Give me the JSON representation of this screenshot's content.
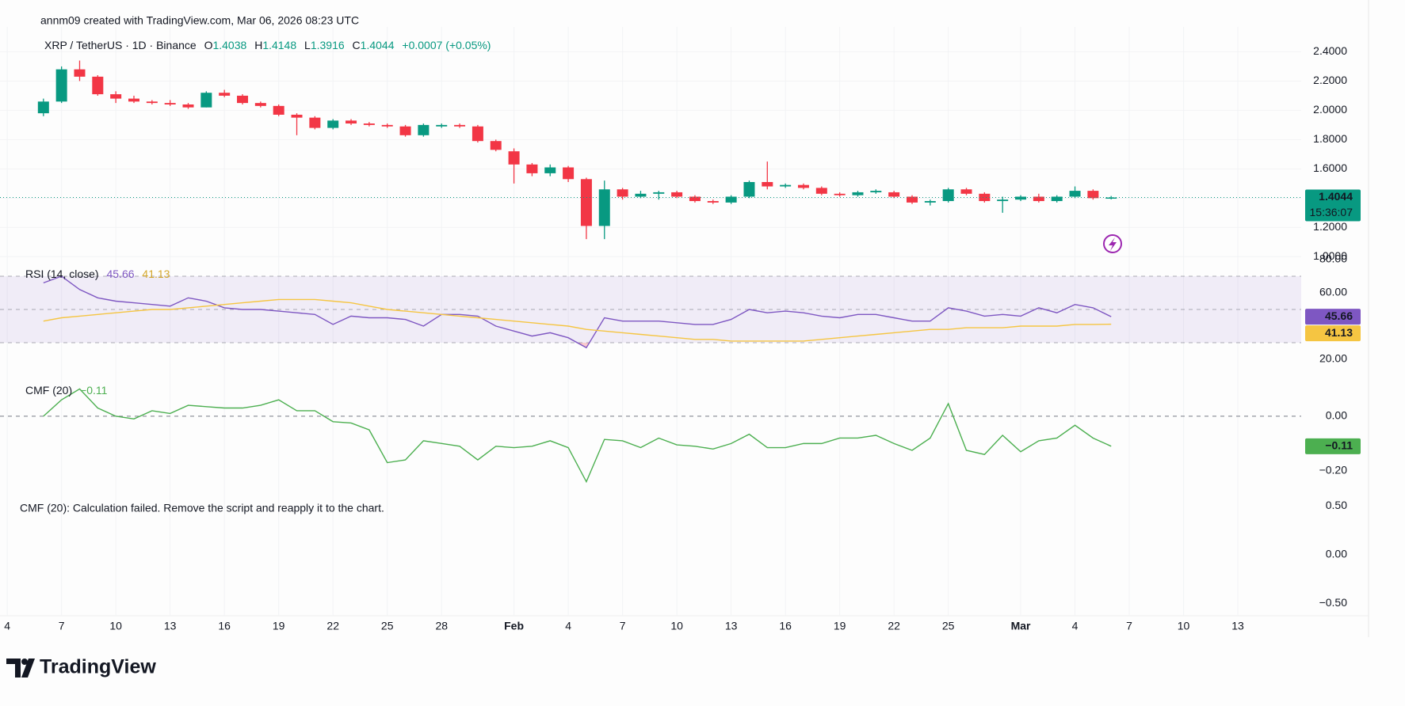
{
  "header": {
    "attribution": "annm09 created with TradingView.com, Mar 06, 2026 08:23 UTC",
    "logo": "TradingView"
  },
  "chart_data": [
    {
      "type": "candlestick",
      "symbol": "XRP / TetherUS · 1D · Binance",
      "legend_labels": [
        "O",
        "H",
        "L",
        "C"
      ],
      "change": "+0.0007 (+0.05%)",
      "countdown": "15:36:07",
      "colors": {
        "up": "#089981",
        "down": "#f23645"
      },
      "grid": true,
      "ohlc": [
        [
          1.98,
          2.08,
          1.96,
          2.06
        ],
        [
          2.06,
          2.3,
          2.05,
          2.28
        ],
        [
          2.28,
          2.34,
          2.2,
          2.23
        ],
        [
          2.23,
          2.24,
          2.1,
          2.11
        ],
        [
          2.11,
          2.13,
          2.05,
          2.08
        ],
        [
          2.08,
          2.1,
          2.05,
          2.06
        ],
        [
          2.06,
          2.07,
          2.04,
          2.05
        ],
        [
          2.05,
          2.07,
          2.03,
          2.04
        ],
        [
          2.04,
          2.05,
          2.01,
          2.02
        ],
        [
          2.02,
          2.13,
          2.02,
          2.12
        ],
        [
          2.12,
          2.14,
          2.09,
          2.1
        ],
        [
          2.1,
          2.11,
          2.04,
          2.05
        ],
        [
          2.05,
          2.06,
          2.02,
          2.03
        ],
        [
          2.03,
          2.04,
          1.96,
          1.97
        ],
        [
          1.97,
          1.98,
          1.83,
          1.95
        ],
        [
          1.95,
          1.96,
          1.87,
          1.88
        ],
        [
          1.88,
          1.94,
          1.87,
          1.93
        ],
        [
          1.93,
          1.94,
          1.9,
          1.91
        ],
        [
          1.91,
          1.92,
          1.89,
          1.9
        ],
        [
          1.9,
          1.91,
          1.88,
          1.89
        ],
        [
          1.89,
          1.9,
          1.82,
          1.83
        ],
        [
          1.83,
          1.91,
          1.82,
          1.9
        ],
        [
          1.89,
          1.91,
          1.88,
          1.9
        ],
        [
          1.9,
          1.91,
          1.88,
          1.89
        ],
        [
          1.89,
          1.9,
          1.78,
          1.79
        ],
        [
          1.79,
          1.8,
          1.72,
          1.73
        ],
        [
          1.72,
          1.74,
          1.5,
          1.63
        ],
        [
          1.63,
          1.64,
          1.55,
          1.57
        ],
        [
          1.57,
          1.63,
          1.55,
          1.61
        ],
        [
          1.61,
          1.62,
          1.51,
          1.53
        ],
        [
          1.53,
          1.54,
          1.12,
          1.21
        ],
        [
          1.21,
          1.52,
          1.12,
          1.46
        ],
        [
          1.46,
          1.47,
          1.39,
          1.41
        ],
        [
          1.41,
          1.45,
          1.4,
          1.43
        ],
        [
          1.43,
          1.45,
          1.39,
          1.44
        ],
        [
          1.44,
          1.45,
          1.4,
          1.41
        ],
        [
          1.41,
          1.42,
          1.37,
          1.38
        ],
        [
          1.38,
          1.39,
          1.36,
          1.37
        ],
        [
          1.37,
          1.42,
          1.36,
          1.41
        ],
        [
          1.41,
          1.52,
          1.4,
          1.51
        ],
        [
          1.51,
          1.65,
          1.46,
          1.48
        ],
        [
          1.48,
          1.5,
          1.47,
          1.49
        ],
        [
          1.49,
          1.5,
          1.46,
          1.47
        ],
        [
          1.47,
          1.48,
          1.42,
          1.43
        ],
        [
          1.43,
          1.44,
          1.41,
          1.42
        ],
        [
          1.42,
          1.45,
          1.41,
          1.44
        ],
        [
          1.44,
          1.46,
          1.43,
          1.45
        ],
        [
          1.44,
          1.45,
          1.4,
          1.41
        ],
        [
          1.41,
          1.42,
          1.36,
          1.37
        ],
        [
          1.37,
          1.39,
          1.35,
          1.38
        ],
        [
          1.38,
          1.47,
          1.37,
          1.46
        ],
        [
          1.46,
          1.47,
          1.42,
          1.43
        ],
        [
          1.43,
          1.44,
          1.37,
          1.38
        ],
        [
          1.38,
          1.41,
          1.3,
          1.39
        ],
        [
          1.39,
          1.42,
          1.38,
          1.41
        ],
        [
          1.41,
          1.43,
          1.37,
          1.38
        ],
        [
          1.38,
          1.42,
          1.37,
          1.41
        ],
        [
          1.41,
          1.48,
          1.4,
          1.45
        ],
        [
          1.45,
          1.46,
          1.39,
          1.4
        ],
        [
          1.4038,
          1.4148,
          1.3916,
          1.4044
        ]
      ],
      "ylim": [
        0.98,
        2.57
      ],
      "yticks": [
        {
          "value": 1.0,
          "label": "1.0000"
        },
        {
          "value": 1.2,
          "label": "1.2000"
        },
        {
          "value": 1.4,
          "label": "1.4000"
        },
        {
          "value": 1.6,
          "label": "1.6000"
        },
        {
          "value": 1.8,
          "label": "1.8000"
        },
        {
          "value": 2.0,
          "label": "2.0000"
        },
        {
          "value": 2.2,
          "label": "2.2000"
        },
        {
          "value": 2.4,
          "label": "2.4000"
        }
      ],
      "xlim": [
        -2.4,
        69.5
      ],
      "xticks": [
        {
          "value": -2,
          "label": "4"
        },
        {
          "value": 1,
          "label": "7"
        },
        {
          "value": 4,
          "label": "10"
        },
        {
          "value": 7,
          "label": "13"
        },
        {
          "value": 10,
          "label": "16"
        },
        {
          "value": 13,
          "label": "19"
        },
        {
          "value": 16,
          "label": "22"
        },
        {
          "value": 19,
          "label": "25"
        },
        {
          "value": 22,
          "label": "28"
        },
        {
          "value": 26,
          "label": "Feb"
        },
        {
          "value": 29,
          "label": "4"
        },
        {
          "value": 32,
          "label": "7"
        },
        {
          "value": 35,
          "label": "10"
        },
        {
          "value": 38,
          "label": "13"
        },
        {
          "value": 41,
          "label": "16"
        },
        {
          "value": 44,
          "label": "19"
        },
        {
          "value": 47,
          "label": "22"
        },
        {
          "value": 50,
          "label": "25"
        },
        {
          "value": 54,
          "label": "Mar"
        },
        {
          "value": 57,
          "label": "4"
        },
        {
          "value": 60,
          "label": "7"
        },
        {
          "value": 63,
          "label": "10"
        },
        {
          "value": 66,
          "label": "13"
        }
      ]
    },
    {
      "type": "line",
      "title": "RSI (14, close)",
      "bands": [
        70,
        50,
        30
      ],
      "series": [
        {
          "color": "#7e57c2",
          "values": [
            66,
            70,
            62,
            57,
            55,
            54,
            53,
            52,
            57,
            55,
            51,
            50,
            50,
            49,
            48,
            47,
            41,
            46,
            45,
            45,
            44,
            40,
            47,
            47,
            46,
            40,
            37,
            34,
            36,
            33,
            27,
            45,
            43,
            43,
            43,
            42,
            41,
            41,
            44,
            50,
            48,
            49,
            48,
            46,
            45,
            47,
            47,
            45,
            43,
            43,
            51,
            49,
            46,
            47,
            46,
            51,
            48,
            53,
            51,
            45.66
          ]
        },
        {
          "color": "#f5c542",
          "values": [
            43,
            45,
            46,
            47,
            48,
            49,
            50,
            50,
            51,
            52,
            53,
            54,
            55,
            56,
            56,
            56,
            55,
            54,
            52,
            50,
            49,
            48,
            47,
            46,
            45,
            44,
            43,
            42,
            41,
            40,
            38,
            37,
            36,
            35,
            34,
            33,
            32,
            32,
            31,
            31,
            31,
            31,
            31,
            32,
            33,
            34,
            35,
            36,
            37,
            38,
            38,
            39,
            39,
            39,
            40,
            40,
            40,
            41,
            41,
            41.13
          ]
        }
      ],
      "ylim": [
        10,
        80
      ],
      "yticks": [
        {
          "value": 80,
          "label": "80.00"
        },
        {
          "value": 60,
          "label": "60.00"
        },
        {
          "value": 20,
          "label": "20.00"
        }
      ]
    },
    {
      "type": "line",
      "title": "CMF (20)",
      "baseline": 0,
      "series": [
        {
          "color": "#4caf50",
          "values": [
            0.0,
            0.06,
            0.1,
            0.03,
            0.0,
            -0.01,
            0.02,
            0.01,
            0.04,
            0.035,
            0.03,
            0.03,
            0.04,
            0.06,
            0.02,
            0.02,
            -0.02,
            -0.025,
            -0.05,
            -0.17,
            -0.16,
            -0.09,
            -0.1,
            -0.11,
            -0.16,
            -0.11,
            -0.115,
            -0.11,
            -0.09,
            -0.115,
            -0.24,
            -0.085,
            -0.09,
            -0.115,
            -0.08,
            -0.105,
            -0.11,
            -0.12,
            -0.1,
            -0.066,
            -0.115,
            -0.115,
            -0.1,
            -0.1,
            -0.08,
            -0.08,
            -0.07,
            -0.1,
            -0.125,
            -0.08,
            0.046,
            -0.125,
            -0.14,
            -0.07,
            -0.13,
            -0.09,
            -0.08,
            -0.033,
            -0.08,
            -0.11
          ],
          "value_labels": [
            null,
            null,
            null,
            null,
            null,
            null,
            null,
            null,
            null,
            null,
            null,
            null,
            null,
            null,
            null,
            null,
            null,
            null,
            null,
            null,
            null,
            null,
            null,
            null,
            null,
            null,
            null,
            null,
            null,
            null,
            null,
            null,
            null,
            null,
            null,
            null,
            null,
            null,
            null,
            null,
            null,
            null,
            null,
            null,
            null,
            null,
            null,
            null,
            null,
            null,
            null,
            null,
            null,
            null,
            null,
            null,
            null,
            null,
            null,
            "−0.11"
          ]
        }
      ],
      "ylim": [
        -0.296,
        0.13
      ],
      "yticks": [
        {
          "value": 0,
          "label": "0.00"
        },
        {
          "value": -0.2,
          "label": "−0.20"
        }
      ]
    },
    {
      "type": "error",
      "message": "CMF (20): Calculation failed. Remove the script and reapply it to the chart.",
      "ylim": [
        -0.67,
        0.59
      ],
      "yticks": [
        {
          "value": 0.5,
          "label": "0.50"
        },
        {
          "value": 0,
          "label": "0.00"
        },
        {
          "value": -0.5,
          "label": "−0.50"
        }
      ]
    }
  ]
}
